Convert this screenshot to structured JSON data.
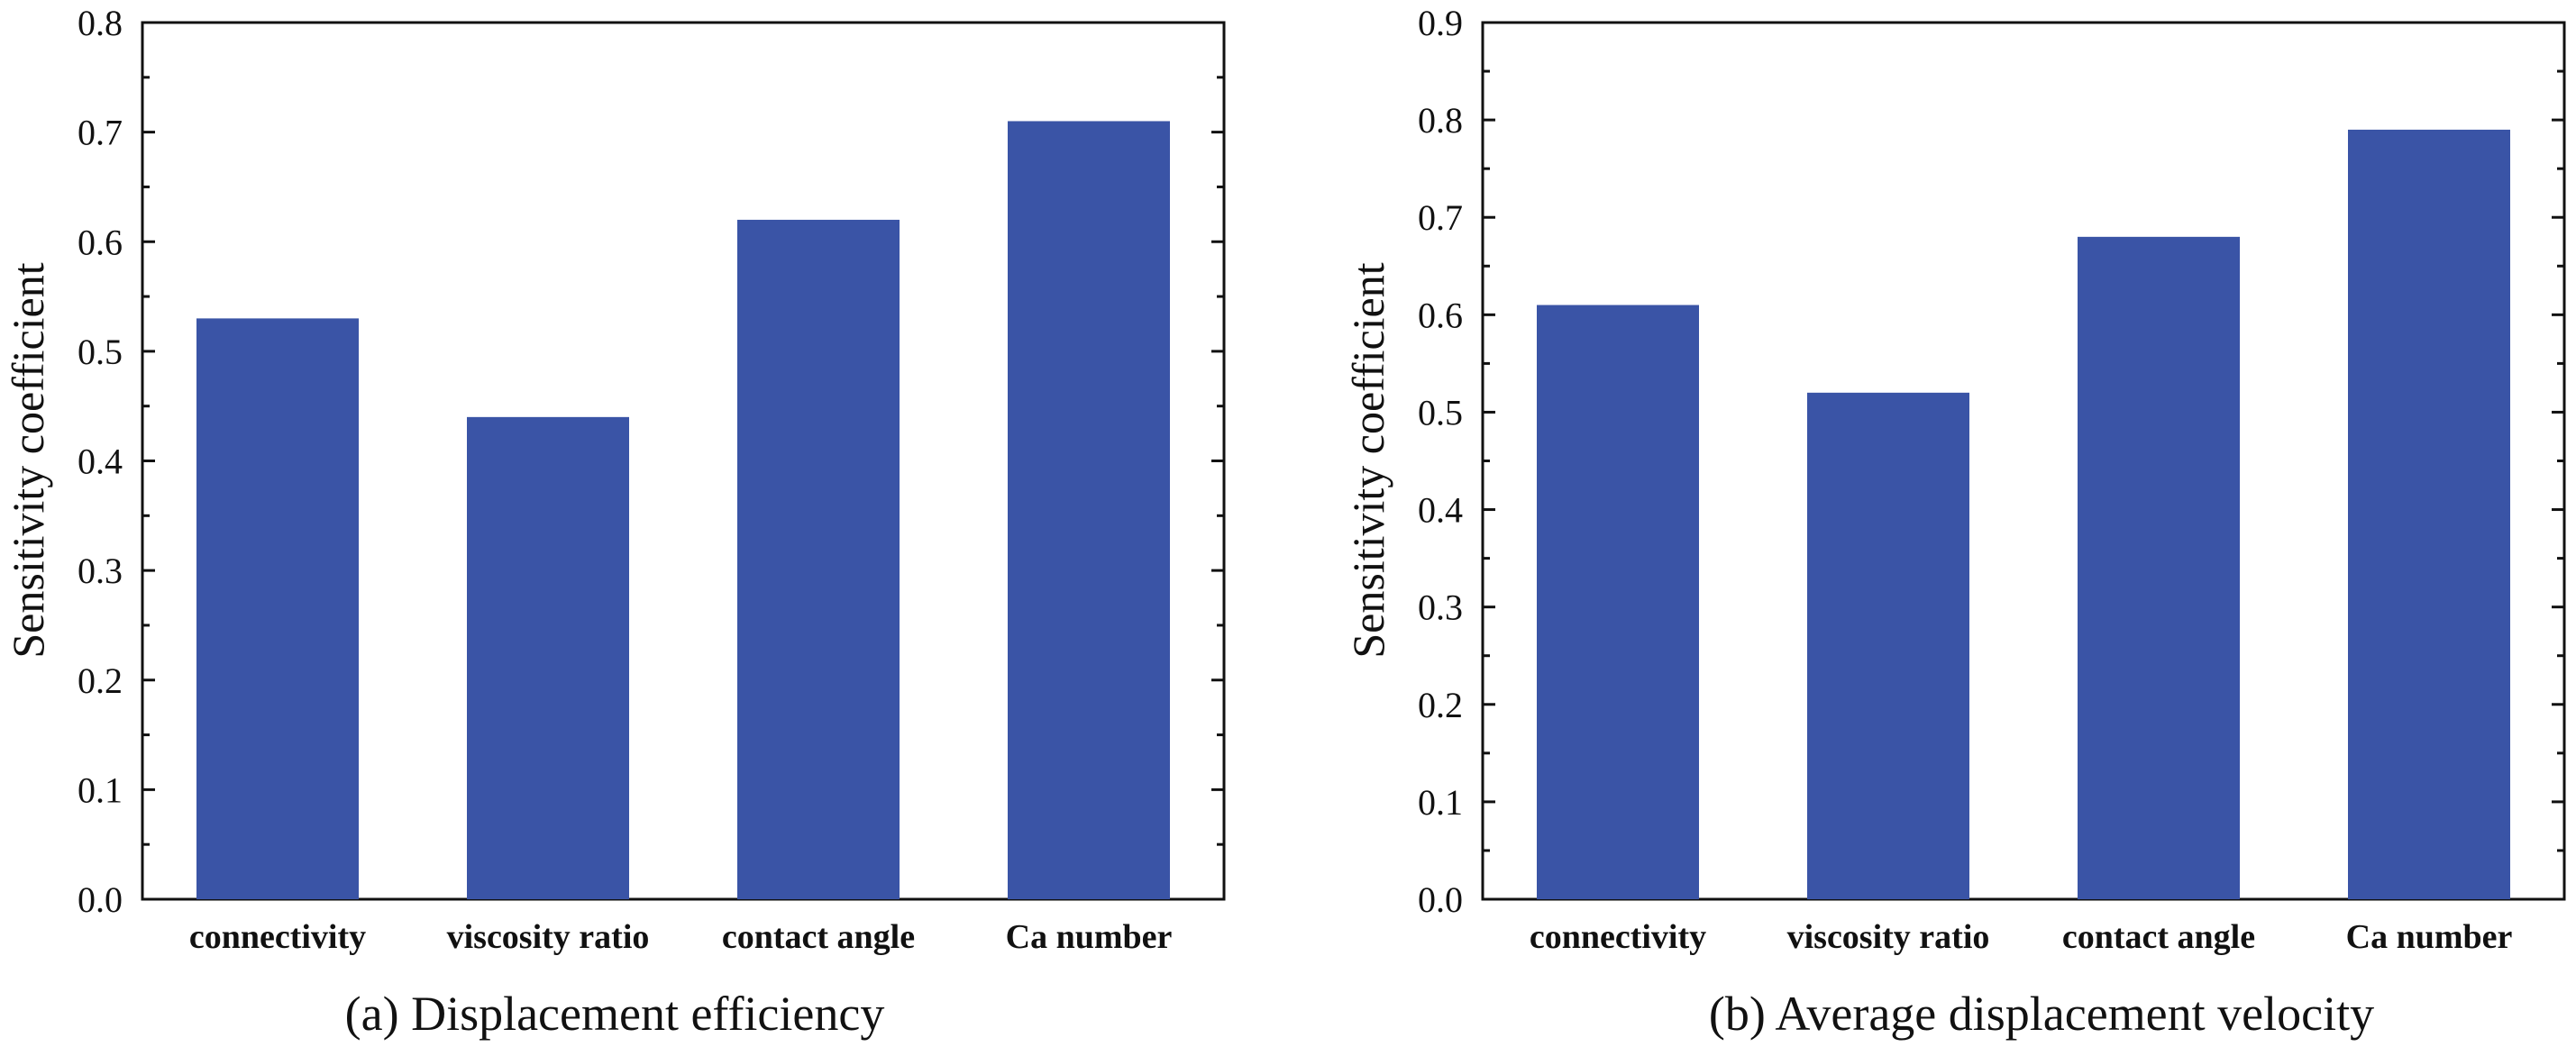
{
  "chart_data": [
    {
      "type": "bar",
      "title": "(a) Displacement efficiency",
      "xlabel": "",
      "ylabel": "Sensitivity coefficient",
      "categories": [
        "connectivity",
        "viscosity ratio",
        "contact angle",
        "Ca number"
      ],
      "values": [
        0.53,
        0.44,
        0.62,
        0.71
      ],
      "ylim": [
        0,
        0.8
      ],
      "yticks": [
        "0.0",
        "0.1",
        "0.2",
        "0.3",
        "0.4",
        "0.5",
        "0.6",
        "0.7",
        "0.8"
      ],
      "bar_color": "#3a54a6",
      "grid": false
    },
    {
      "type": "bar",
      "title": "(b) Average displacement velocity",
      "xlabel": "",
      "ylabel": "Sensitivity coefficient",
      "categories": [
        "connectivity",
        "viscosity ratio",
        "contact angle",
        "Ca number"
      ],
      "values": [
        0.61,
        0.52,
        0.68,
        0.79
      ],
      "ylim": [
        0,
        0.9
      ],
      "yticks": [
        "0.0",
        "0.1",
        "0.2",
        "0.3",
        "0.4",
        "0.5",
        "0.6",
        "0.7",
        "0.8",
        "0.9"
      ],
      "bar_color": "#3a54a6",
      "grid": false
    }
  ]
}
